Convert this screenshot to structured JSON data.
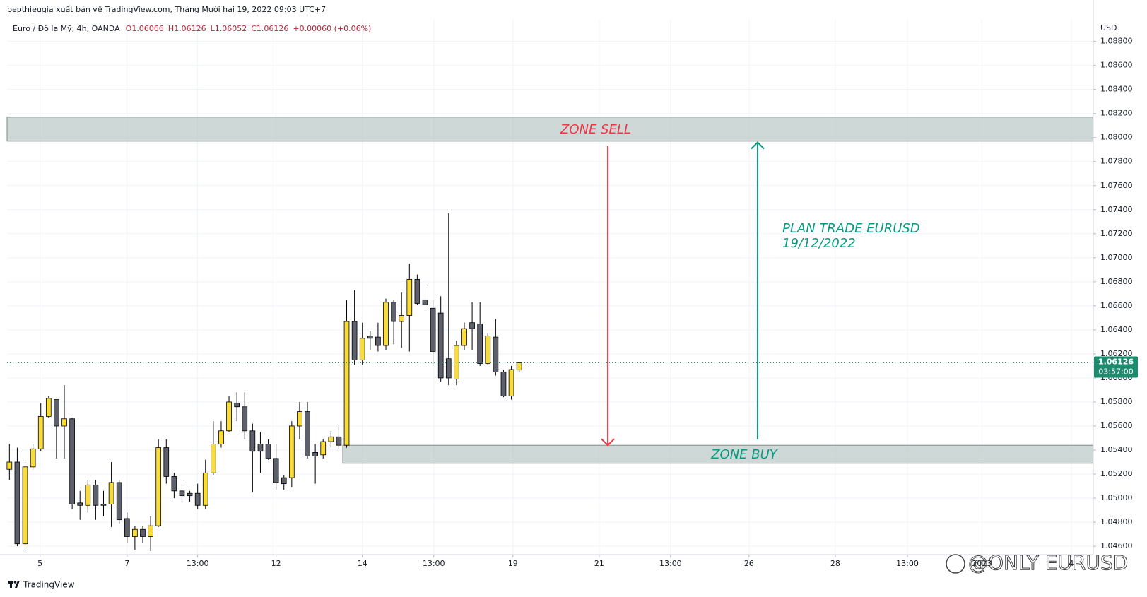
{
  "chart_data": {
    "type": "candlestick",
    "attribution": "bepthieugia xuất bản về TradingView.com, Tháng Mười hai 19, 2022 09:03 UTC+7",
    "symbol": "Euro / Đô la Mỹ, 4h, OANDA",
    "ohlc_legend": [
      "O1.06066",
      "H1.06126",
      "L1.06052",
      "C1.06126",
      "+0.00060 (+0.06%)"
    ],
    "currency": "USD",
    "open": [
      1.0524,
      1.053,
      1.0462,
      1.0526,
      1.0541,
      1.0568,
      1.0582,
      1.056,
      1.0566,
      1.0496,
      1.0494,
      1.0511,
      1.0495,
      1.0495,
      1.0513,
      1.0483,
      1.0468,
      1.0474,
      1.0468,
      1.0477,
      1.0542,
      1.0518,
      1.0506,
      1.0504,
      1.0504,
      1.0494,
      1.0521,
      1.0545,
      1.0556,
      1.0579,
      1.0576,
      1.0556,
      1.0545,
      1.0545,
      1.0533,
      1.0517,
      1.0517,
      1.056,
      1.0572,
      1.0538,
      1.0536,
      1.0547,
      1.0551,
      1.0544,
      1.0647,
      1.0615,
      1.0635,
      1.0634,
      1.0627,
      1.0663,
      1.0647,
      1.0652,
      1.0682,
      1.0665,
      1.0658,
      1.0654,
      1.0616,
      1.0599,
      1.0627,
      1.0646,
      1.0645,
      1.0612,
      1.0634,
      1.0605,
      1.0585,
      1.06066
    ],
    "high": [
      1.0545,
      1.0542,
      1.0533,
      1.0545,
      1.0579,
      1.0585,
      1.0582,
      1.0594,
      1.0567,
      1.0506,
      1.0515,
      1.0515,
      1.0506,
      1.053,
      1.0515,
      1.0488,
      1.0477,
      1.0477,
      1.0485,
      1.0549,
      1.0549,
      1.0521,
      1.0512,
      1.0506,
      1.0512,
      1.0532,
      1.0564,
      1.0564,
      1.0585,
      1.0588,
      1.0588,
      1.0562,
      1.0555,
      1.0549,
      1.0545,
      1.0519,
      1.0564,
      1.058,
      1.058,
      1.0545,
      1.0549,
      1.0556,
      1.0561,
      1.0665,
      1.0673,
      1.0646,
      1.0639,
      1.0646,
      1.0666,
      1.0665,
      1.0671,
      1.0695,
      1.0686,
      1.0677,
      1.0665,
      1.0668,
      1.0737,
      1.0631,
      1.0646,
      1.0663,
      1.0663,
      1.0637,
      1.0649,
      1.0607,
      1.061,
      1.06126
    ],
    "low": [
      1.0515,
      1.046,
      1.0454,
      1.0524,
      1.0539,
      1.0567,
      1.0533,
      1.0533,
      1.0491,
      1.0482,
      1.0488,
      1.0482,
      1.0485,
      1.0476,
      1.0479,
      1.0463,
      1.0457,
      1.0463,
      1.0456,
      1.0476,
      1.0512,
      1.05,
      1.0497,
      1.0497,
      1.0491,
      1.0491,
      1.0519,
      1.0542,
      1.0555,
      1.0564,
      1.0549,
      1.0505,
      1.0521,
      1.0532,
      1.0507,
      1.0507,
      1.0509,
      1.0549,
      1.0533,
      1.0512,
      1.0533,
      1.0542,
      1.0541,
      1.0542,
      1.0611,
      1.0611,
      1.0623,
      1.0622,
      1.0623,
      1.0628,
      1.0625,
      1.0622,
      1.0661,
      1.0658,
      1.061,
      1.0597,
      1.0594,
      1.0594,
      1.0623,
      1.0623,
      1.061,
      1.0611,
      1.0602,
      1.0584,
      1.0582,
      1.06052
    ],
    "close": [
      1.053,
      1.0462,
      1.0526,
      1.0541,
      1.0568,
      1.0583,
      1.056,
      1.0566,
      1.0495,
      1.0494,
      1.0511,
      1.0494,
      1.0494,
      1.0513,
      1.0482,
      1.0468,
      1.0474,
      1.0468,
      1.0477,
      1.0542,
      1.0518,
      1.0506,
      1.0502,
      1.0502,
      1.0494,
      1.0521,
      1.0545,
      1.0556,
      1.058,
      1.0576,
      1.0556,
      1.0539,
      1.0539,
      1.0533,
      1.0513,
      1.0512,
      1.056,
      1.0572,
      1.0535,
      1.0535,
      1.0547,
      1.0551,
      1.0544,
      1.0647,
      1.0615,
      1.0633,
      1.0633,
      1.0627,
      1.0663,
      1.0647,
      1.0652,
      1.0682,
      1.0662,
      1.0661,
      1.0622,
      1.06,
      1.06,
      1.0627,
      1.0641,
      1.0641,
      1.0612,
      1.0635,
      1.0605,
      1.0585,
      1.0607,
      1.06126
    ],
    "up_color": "#f7dc3b",
    "down_color": "#5d606b",
    "xlim": [
      -0.3,
      138.2
    ],
    "xticks": [
      {
        "value": 3.9,
        "label": "5"
      },
      {
        "value": 15,
        "label": "7"
      },
      {
        "value": 24,
        "label": "13:00"
      },
      {
        "value": 34,
        "label": "12"
      },
      {
        "value": 45,
        "label": "14"
      },
      {
        "value": 54.1,
        "label": "13:00"
      },
      {
        "value": 64.2,
        "label": "19"
      },
      {
        "value": 75.2,
        "label": "21"
      },
      {
        "value": 84.3,
        "label": "13:00"
      },
      {
        "value": 94.3,
        "label": "26"
      },
      {
        "value": 105.3,
        "label": "28"
      },
      {
        "value": 114.5,
        "label": "13:00"
      },
      {
        "value": 124,
        "label": "2023"
      },
      {
        "value": 135.4,
        "label": "4"
      }
    ],
    "ylim": [
      1.0453,
      1.0898
    ],
    "yticks": [
      {
        "value": 1.046,
        "label": "1.04600"
      },
      {
        "value": 1.048,
        "label": "1.04800"
      },
      {
        "value": 1.05,
        "label": "1.05000"
      },
      {
        "value": 1.052,
        "label": "1.05200"
      },
      {
        "value": 1.054,
        "label": "1.05400"
      },
      {
        "value": 1.056,
        "label": "1.05600"
      },
      {
        "value": 1.058,
        "label": "1.05800"
      },
      {
        "value": 1.06,
        "label": "1.06000"
      },
      {
        "value": 1.062,
        "label": "1.06200"
      },
      {
        "value": 1.064,
        "label": "1.06400"
      },
      {
        "value": 1.066,
        "label": "1.06600"
      },
      {
        "value": 1.068,
        "label": "1.06800"
      },
      {
        "value": 1.07,
        "label": "1.07000"
      },
      {
        "value": 1.072,
        "label": "1.07200"
      },
      {
        "value": 1.074,
        "label": "1.07400"
      },
      {
        "value": 1.076,
        "label": "1.07600"
      },
      {
        "value": 1.078,
        "label": "1.07800"
      },
      {
        "value": 1.08,
        "label": "1.08000"
      },
      {
        "value": 1.082,
        "label": "1.08200"
      },
      {
        "value": 1.084,
        "label": "1.08400"
      },
      {
        "value": 1.086,
        "label": "1.08600"
      },
      {
        "value": 1.088,
        "label": "1.08800"
      }
    ],
    "grid": true,
    "last_price": 1.06126,
    "countdown": "03:57:00",
    "last_price_color": "#1e8a6e",
    "zone_color": "#b4c5c1",
    "zones": [
      {
        "label": "ZONE SELL",
        "top": 1.0817,
        "bottom": 1.0797,
        "x_start": -0.3,
        "label_color": "#f23645"
      },
      {
        "label": "ZONE BUY",
        "top": 1.0544,
        "bottom": 1.0529,
        "x_start": 42.5,
        "label_color": "#089981"
      }
    ],
    "arrows": [
      {
        "x": 76.3,
        "from": 1.0793,
        "to": 1.0544,
        "color": "#f23645"
      },
      {
        "x": 95.4,
        "from": 1.0549,
        "to": 1.0796,
        "color": "#089981"
      }
    ],
    "note": {
      "lines": [
        "PLAN TRADE EURUSD",
        "19/12/2022"
      ],
      "color": "#089981"
    },
    "watermark": "@ONLY EURUSD",
    "branding": "TradingView"
  }
}
